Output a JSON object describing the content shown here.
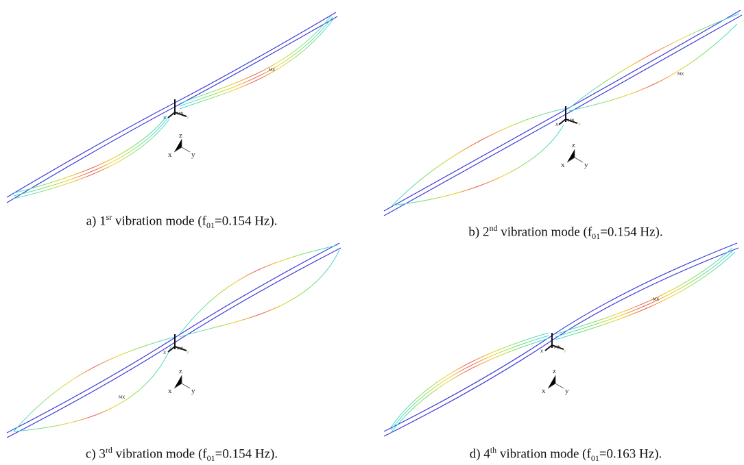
{
  "panels": [
    {
      "caption": {
        "prefix": "a) 1",
        "sup": "sr",
        "middle": " vibration mode (f",
        "sub": "01",
        "suffix": "=0.154 Hz)."
      },
      "labels": {
        "mx": "MX",
        "mn": "MN",
        "triad": [
          "X",
          "Y"
        ],
        "axes": [
          "z",
          "x",
          "y"
        ]
      }
    },
    {
      "caption": {
        "prefix": "b) 2",
        "sup": "nd",
        "middle": " vibration mode (f",
        "sub": "01",
        "suffix": "=0.154 Hz)."
      },
      "labels": {
        "mx": "MX",
        "mn": "MN",
        "triad": [
          "X",
          "Y"
        ],
        "axes": [
          "z",
          "x",
          "y"
        ]
      }
    },
    {
      "caption": {
        "prefix": "c) 3",
        "sup": "rd",
        "middle": " vibration mode (f",
        "sub": "01",
        "suffix": "=0.154 Hz)."
      },
      "labels": {
        "mx": "MX",
        "mn": "MN",
        "triad": [
          "X",
          "Y"
        ],
        "axes": [
          "z",
          "x",
          "y"
        ]
      }
    },
    {
      "caption": {
        "prefix": "d) 4",
        "sup": "th",
        "middle": " vibration mode (f",
        "sub": "01",
        "suffix": "=0.163 Hz)."
      },
      "labels": {
        "mx": "MX",
        "mn": "MN",
        "triad": [
          "X",
          "Y"
        ],
        "axes": [
          "z",
          "x",
          "y"
        ]
      }
    }
  ]
}
